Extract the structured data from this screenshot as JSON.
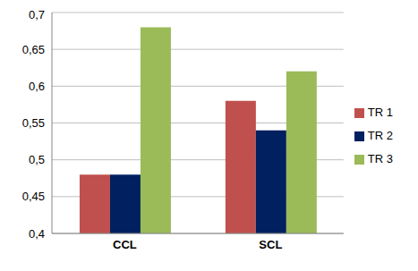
{
  "chart_data": {
    "type": "bar",
    "categories": [
      "CCL",
      "SCL"
    ],
    "series": [
      {
        "name": "TR 1",
        "color": "#c0504d",
        "values": [
          0.48,
          0.58
        ]
      },
      {
        "name": "TR 2",
        "color": "#002060",
        "values": [
          0.48,
          0.54
        ]
      },
      {
        "name": "TR 3",
        "color": "#9bbb59",
        "values": [
          0.68,
          0.62
        ]
      }
    ],
    "ylim": [
      0.4,
      0.7
    ],
    "yticks": [
      {
        "value": 0.4,
        "label": "0,4"
      },
      {
        "value": 0.45,
        "label": "0,45"
      },
      {
        "value": 0.5,
        "label": "0,5"
      },
      {
        "value": 0.55,
        "label": "0,55"
      },
      {
        "value": 0.6,
        "label": "0,6"
      },
      {
        "value": 0.65,
        "label": "0,65"
      },
      {
        "value": 0.7,
        "label": "0,7"
      }
    ],
    "grid": true,
    "legend": "right"
  }
}
